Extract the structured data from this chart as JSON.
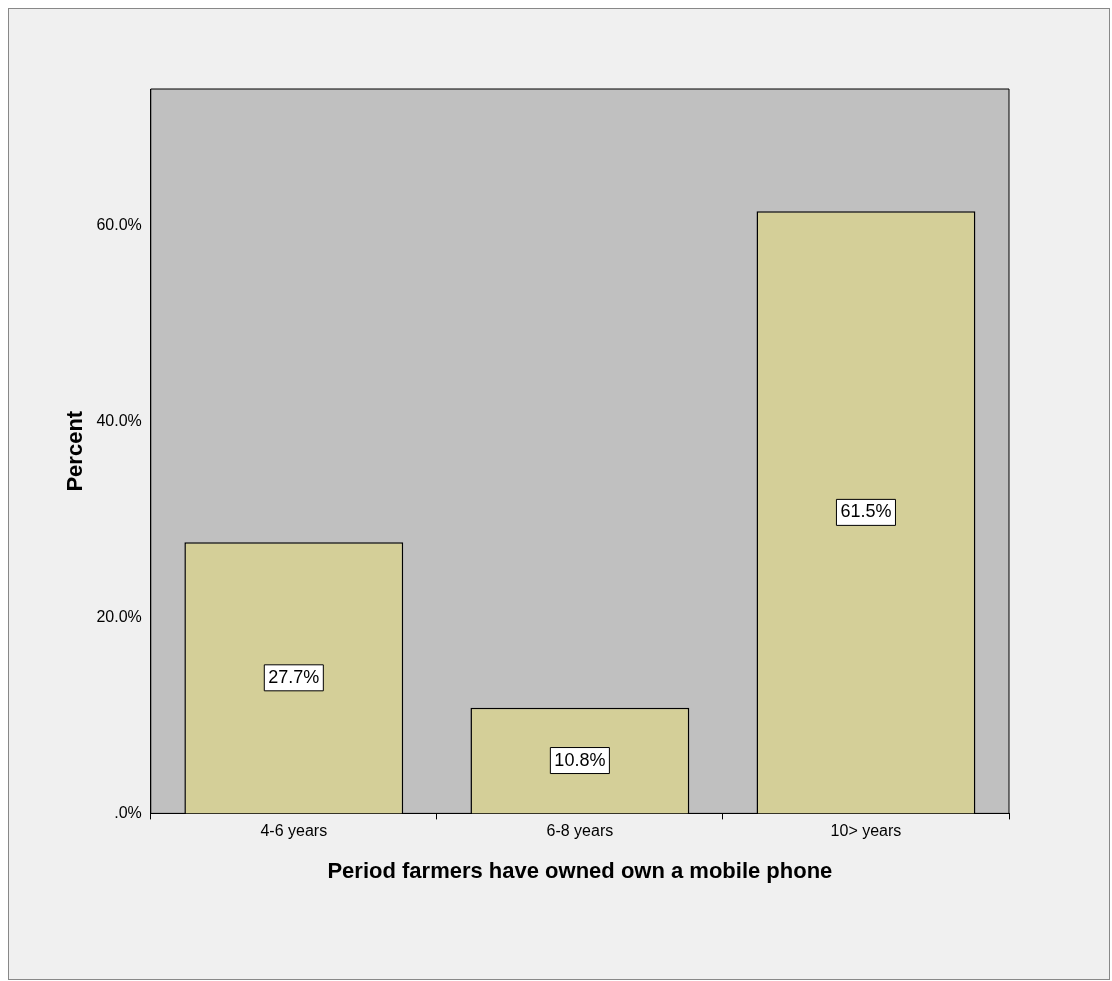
{
  "chart_data": {
    "type": "bar",
    "xlabel": "Period farmers have owned own a mobile phone",
    "ylabel": "Percent",
    "categories": [
      "4-6 years",
      "6-8 years",
      "10> years"
    ],
    "values": [
      27.7,
      10.8,
      61.5
    ],
    "value_labels": [
      "27.7%",
      "10.8%",
      "61.5%"
    ],
    "color": "#d4cf98",
    "ylim": [
      0,
      74
    ],
    "yticks": [
      {
        "value": 0,
        "label": ".0%"
      },
      {
        "value": 20,
        "label": "20.0%"
      },
      {
        "value": 40,
        "label": "40.0%"
      },
      {
        "value": 60,
        "label": "60.0%"
      }
    ],
    "grid": false,
    "legend": false
  }
}
